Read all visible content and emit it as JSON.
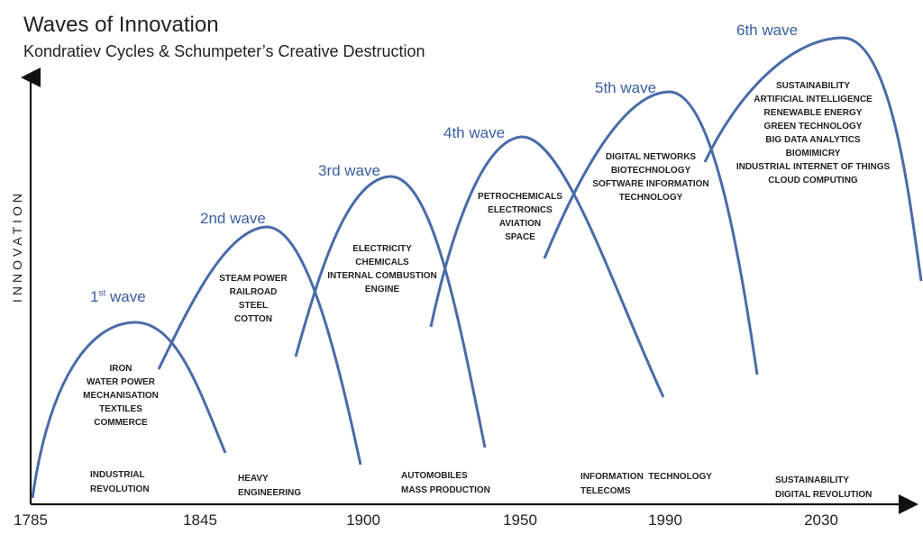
{
  "title": "Waves of Innovation",
  "subtitle": "Kondratiev Cycles & Schumpeter’s Creative Destruction",
  "y_axis_label": "INNOVATION",
  "x_ticks": [
    "1785",
    "1845",
    "1900",
    "1950",
    "1990",
    "2030"
  ],
  "colors": {
    "wave": "#4a6ba8",
    "label": "#3a5fa0",
    "axis": "#111111"
  },
  "waves": [
    {
      "label": "1",
      "label_sup": "st",
      "label_suffix": " wave",
      "innovations": [
        "IRON",
        "WATER POWER",
        "MECHANISATION",
        "TEXTILES",
        "COMMERCE"
      ],
      "era": [
        "INDUSTRIAL",
        "REVOLUTION"
      ]
    },
    {
      "label": "2nd wave",
      "innovations": [
        "STEAM POWER",
        "RAILROAD",
        "STEEL",
        "COTTON"
      ],
      "era": [
        "HEAVY",
        "ENGINEERING"
      ]
    },
    {
      "label": "3rd wave",
      "innovations": [
        "ELECTRICITY",
        "CHEMICALS",
        "INTERNAL COMBUSTION",
        "ENGINE"
      ],
      "era": [
        "AUTOMOBILES",
        "MASS PRODUCTION"
      ]
    },
    {
      "label": "4th wave",
      "innovations": [
        "PETROCHEMICALS",
        "ELECTRONICS",
        "AVIATION",
        "SPACE"
      ],
      "era": []
    },
    {
      "label": "5th wave",
      "innovations": [
        "DIGITAL NETWORKS",
        "BIOTECHNOLOGY",
        "SOFTWARE INFORMATION",
        "TECHNOLOGY"
      ],
      "era": [
        "INFORMATION  TECHNOLOGY",
        "TELECOMS"
      ]
    },
    {
      "label": "6th wave",
      "innovations": [
        "SUSTAINABILITY",
        "ARTIFICIAL INTELLIGENCE",
        "RENEWABLE ENERGY",
        "GREEN TECHNOLOGY",
        "BIG DATA ANALYTICS",
        "BIOMIMICRY",
        "INDUSTRIAL INTERNET OF THINGS",
        "CLOUD COMPUTING"
      ],
      "era": [
        "SUSTAINABILITY",
        "DIGITAL REVOLUTION"
      ]
    }
  ]
}
